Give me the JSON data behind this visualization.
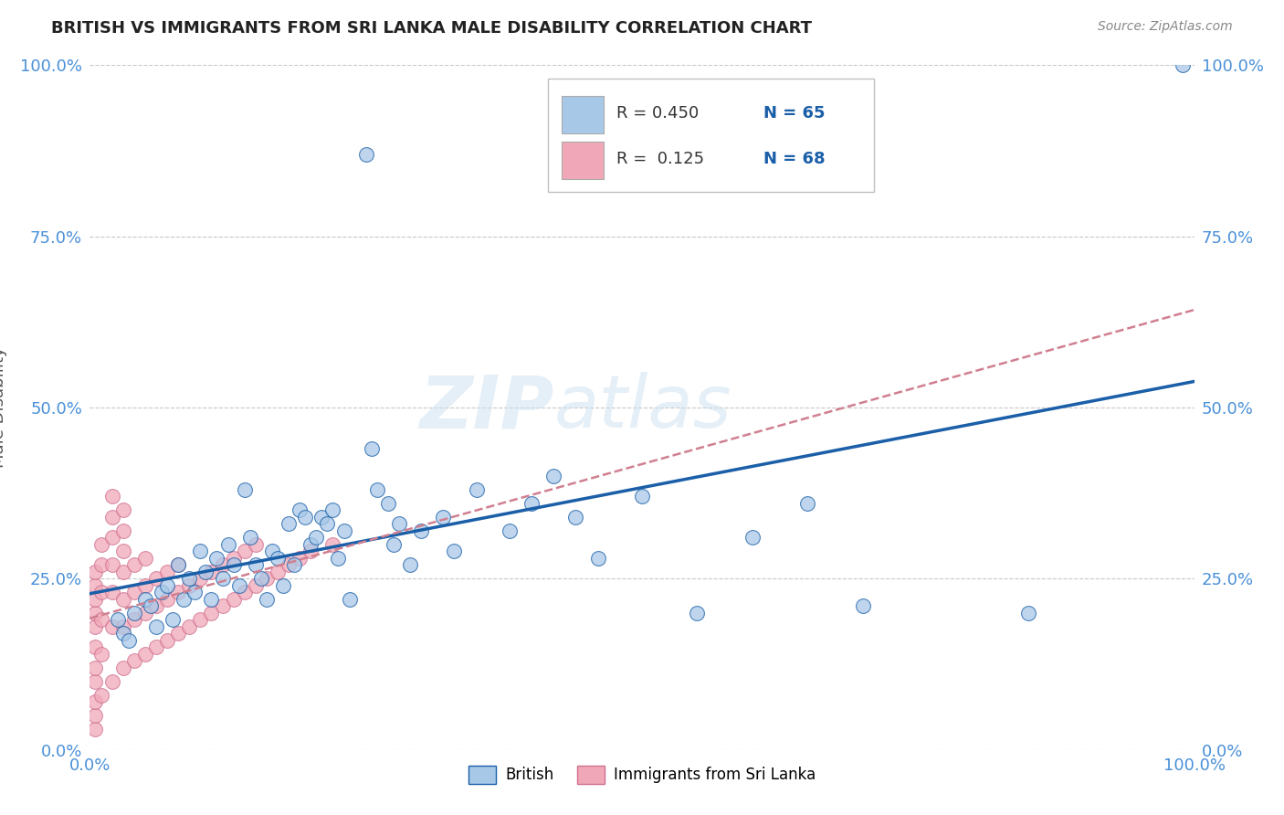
{
  "title": "BRITISH VS IMMIGRANTS FROM SRI LANKA MALE DISABILITY CORRELATION CHART",
  "source": "Source: ZipAtlas.com",
  "ylabel": "Male Disability",
  "watermark": "ZIPatlas",
  "legend_r1": "R = 0.450",
  "legend_n1": "N = 65",
  "legend_r2": "R =  0.125",
  "legend_n2": "N = 68",
  "legend_label1": "British",
  "legend_label2": "Immigrants from Sri Lanka",
  "xlim": [
    0.0,
    1.0
  ],
  "ylim": [
    0.0,
    1.0
  ],
  "ytick_vals": [
    0.0,
    0.25,
    0.5,
    0.75,
    1.0
  ],
  "ytick_labels": [
    "0.0%",
    "25.0%",
    "50.0%",
    "75.0%",
    "100.0%"
  ],
  "grid_color": "#c8c8c8",
  "bg_color": "#ffffff",
  "blue_color": "#a8c8e8",
  "pink_color": "#f0a8b8",
  "line_blue": "#1a5fa8",
  "line_pink": "#d08090",
  "title_color": "#222222",
  "axis_label_color": "#4a90d9",
  "blue_scatter": [
    [
      0.025,
      0.19
    ],
    [
      0.03,
      0.17
    ],
    [
      0.035,
      0.16
    ],
    [
      0.04,
      0.2
    ],
    [
      0.05,
      0.22
    ],
    [
      0.055,
      0.21
    ],
    [
      0.06,
      0.18
    ],
    [
      0.065,
      0.23
    ],
    [
      0.07,
      0.24
    ],
    [
      0.075,
      0.19
    ],
    [
      0.08,
      0.27
    ],
    [
      0.085,
      0.22
    ],
    [
      0.09,
      0.25
    ],
    [
      0.095,
      0.23
    ],
    [
      0.1,
      0.29
    ],
    [
      0.105,
      0.26
    ],
    [
      0.11,
      0.22
    ],
    [
      0.115,
      0.28
    ],
    [
      0.12,
      0.25
    ],
    [
      0.125,
      0.3
    ],
    [
      0.13,
      0.27
    ],
    [
      0.135,
      0.24
    ],
    [
      0.14,
      0.38
    ],
    [
      0.145,
      0.31
    ],
    [
      0.15,
      0.27
    ],
    [
      0.155,
      0.25
    ],
    [
      0.16,
      0.22
    ],
    [
      0.165,
      0.29
    ],
    [
      0.17,
      0.28
    ],
    [
      0.175,
      0.24
    ],
    [
      0.18,
      0.33
    ],
    [
      0.185,
      0.27
    ],
    [
      0.19,
      0.35
    ],
    [
      0.195,
      0.34
    ],
    [
      0.2,
      0.3
    ],
    [
      0.205,
      0.31
    ],
    [
      0.21,
      0.34
    ],
    [
      0.215,
      0.33
    ],
    [
      0.22,
      0.35
    ],
    [
      0.225,
      0.28
    ],
    [
      0.23,
      0.32
    ],
    [
      0.235,
      0.22
    ],
    [
      0.25,
      0.87
    ],
    [
      0.255,
      0.44
    ],
    [
      0.26,
      0.38
    ],
    [
      0.27,
      0.36
    ],
    [
      0.275,
      0.3
    ],
    [
      0.28,
      0.33
    ],
    [
      0.29,
      0.27
    ],
    [
      0.3,
      0.32
    ],
    [
      0.32,
      0.34
    ],
    [
      0.33,
      0.29
    ],
    [
      0.35,
      0.38
    ],
    [
      0.38,
      0.32
    ],
    [
      0.4,
      0.36
    ],
    [
      0.42,
      0.4
    ],
    [
      0.44,
      0.34
    ],
    [
      0.46,
      0.28
    ],
    [
      0.5,
      0.37
    ],
    [
      0.55,
      0.2
    ],
    [
      0.6,
      0.31
    ],
    [
      0.65,
      0.36
    ],
    [
      0.7,
      0.21
    ],
    [
      0.85,
      0.2
    ],
    [
      0.99,
      1.0
    ]
  ],
  "pink_scatter": [
    [
      0.005,
      0.03
    ],
    [
      0.005,
      0.05
    ],
    [
      0.005,
      0.07
    ],
    [
      0.005,
      0.1
    ],
    [
      0.005,
      0.12
    ],
    [
      0.005,
      0.15
    ],
    [
      0.005,
      0.18
    ],
    [
      0.005,
      0.2
    ],
    [
      0.005,
      0.22
    ],
    [
      0.005,
      0.24
    ],
    [
      0.005,
      0.26
    ],
    [
      0.01,
      0.08
    ],
    [
      0.01,
      0.14
    ],
    [
      0.01,
      0.19
    ],
    [
      0.01,
      0.23
    ],
    [
      0.01,
      0.27
    ],
    [
      0.01,
      0.3
    ],
    [
      0.02,
      0.1
    ],
    [
      0.02,
      0.18
    ],
    [
      0.02,
      0.23
    ],
    [
      0.02,
      0.27
    ],
    [
      0.02,
      0.31
    ],
    [
      0.02,
      0.34
    ],
    [
      0.02,
      0.37
    ],
    [
      0.03,
      0.12
    ],
    [
      0.03,
      0.18
    ],
    [
      0.03,
      0.22
    ],
    [
      0.03,
      0.26
    ],
    [
      0.03,
      0.29
    ],
    [
      0.03,
      0.32
    ],
    [
      0.03,
      0.35
    ],
    [
      0.04,
      0.13
    ],
    [
      0.04,
      0.19
    ],
    [
      0.04,
      0.23
    ],
    [
      0.04,
      0.27
    ],
    [
      0.05,
      0.14
    ],
    [
      0.05,
      0.2
    ],
    [
      0.05,
      0.24
    ],
    [
      0.05,
      0.28
    ],
    [
      0.06,
      0.15
    ],
    [
      0.06,
      0.21
    ],
    [
      0.06,
      0.25
    ],
    [
      0.07,
      0.16
    ],
    [
      0.07,
      0.22
    ],
    [
      0.07,
      0.26
    ],
    [
      0.08,
      0.17
    ],
    [
      0.08,
      0.23
    ],
    [
      0.08,
      0.27
    ],
    [
      0.09,
      0.18
    ],
    [
      0.09,
      0.24
    ],
    [
      0.1,
      0.19
    ],
    [
      0.1,
      0.25
    ],
    [
      0.11,
      0.2
    ],
    [
      0.11,
      0.26
    ],
    [
      0.12,
      0.21
    ],
    [
      0.12,
      0.27
    ],
    [
      0.13,
      0.22
    ],
    [
      0.13,
      0.28
    ],
    [
      0.14,
      0.23
    ],
    [
      0.14,
      0.29
    ],
    [
      0.15,
      0.24
    ],
    [
      0.15,
      0.3
    ],
    [
      0.16,
      0.25
    ],
    [
      0.17,
      0.26
    ],
    [
      0.18,
      0.27
    ],
    [
      0.19,
      0.28
    ],
    [
      0.2,
      0.29
    ],
    [
      0.22,
      0.3
    ]
  ]
}
